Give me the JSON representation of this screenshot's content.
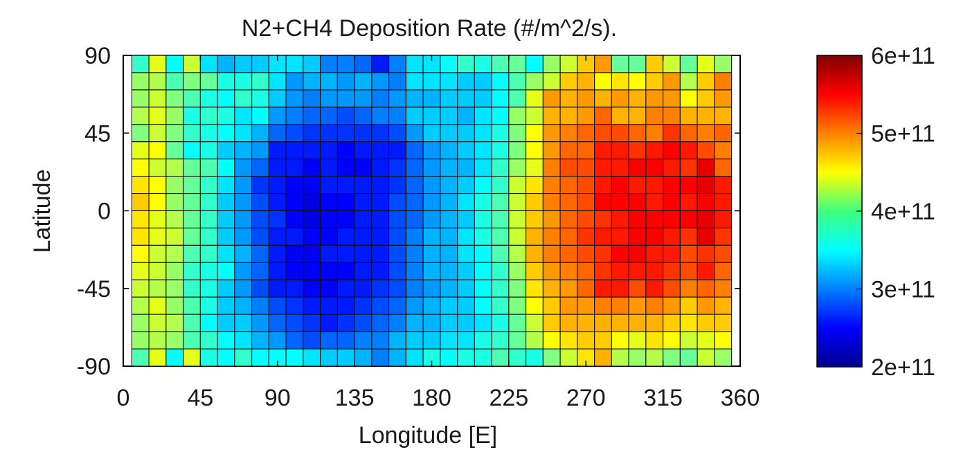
{
  "chart_data": {
    "type": "heatmap",
    "title": "N2+CH4 Deposition Rate (#/m^2/s).",
    "xlabel": "Longitude [E]",
    "ylabel": "Latitude",
    "xlim": [
      0,
      360
    ],
    "ylim": [
      -90,
      90
    ],
    "x_ticks": [
      "0",
      "45",
      "90",
      "135",
      "180",
      "225",
      "270",
      "315",
      "360"
    ],
    "y_ticks": [
      "90",
      "45",
      "0",
      "-45",
      "-90"
    ],
    "cell_size_deg": 10,
    "unit_multiplier": 100000000000.0,
    "colorbar": {
      "min": 200000000000.0,
      "max": 600000000000.0,
      "ticks": [
        "6e+11",
        "5e+11",
        "4e+11",
        "3e+11",
        "2e+11"
      ],
      "colormap": "jet"
    },
    "lon_centers": [
      10,
      20,
      30,
      40,
      50,
      60,
      70,
      80,
      90,
      100,
      110,
      120,
      130,
      140,
      150,
      160,
      170,
      180,
      190,
      200,
      210,
      220,
      230,
      240,
      250,
      260,
      270,
      280,
      290,
      300,
      310,
      320,
      330,
      340,
      350
    ],
    "lat_centers_north": [
      85,
      75,
      65,
      55,
      45,
      35,
      25,
      15,
      5
    ],
    "lat_centers_south": [
      -5,
      -15,
      -25,
      -35,
      -45,
      -55,
      -65,
      -75,
      -85
    ],
    "values_north": [
      [
        3.7,
        4.4,
        3.5,
        4.3,
        3.4,
        3.2,
        3.3,
        3.3,
        3.4,
        3.4,
        3.3,
        3.0,
        3.0,
        2.9,
        2.6,
        3.0,
        3.4,
        3.4,
        3.5,
        3.7,
        3.6,
        3.8,
        3.9,
        3.5,
        4.1,
        4.3,
        4.7,
        4.9,
        3.9,
        3.9,
        4.7,
        4.3,
        3.9,
        4.4,
        4.1
      ],
      [
        4.1,
        4.2,
        3.8,
        4.0,
        3.9,
        3.6,
        3.6,
        3.7,
        3.4,
        3.1,
        3.2,
        3.2,
        3.1,
        3.2,
        3.1,
        3.0,
        3.4,
        3.4,
        3.4,
        3.3,
        3.3,
        3.5,
        3.8,
        4.1,
        4.3,
        4.7,
        4.8,
        4.5,
        4.6,
        4.5,
        4.7,
        4.9,
        4.2,
        4.7,
        5.0
      ],
      [
        4.1,
        4.3,
        4.0,
        3.8,
        3.6,
        3.5,
        3.7,
        3.6,
        3.3,
        3.1,
        3.0,
        3.1,
        3.1,
        3.1,
        3.0,
        3.1,
        3.2,
        3.2,
        3.3,
        3.3,
        3.3,
        3.5,
        3.8,
        4.4,
        4.9,
        4.8,
        4.9,
        4.8,
        4.9,
        4.8,
        4.9,
        4.9,
        4.5,
        4.7,
        4.9
      ],
      [
        4.2,
        4.4,
        4.1,
        3.6,
        3.7,
        3.6,
        3.4,
        3.5,
        3.1,
        3.0,
        2.9,
        2.9,
        2.8,
        2.9,
        3.0,
        3.0,
        3.3,
        3.3,
        3.3,
        3.2,
        3.4,
        3.5,
        4.1,
        4.3,
        4.8,
        4.8,
        4.9,
        5.1,
        4.8,
        4.8,
        5.0,
        5.0,
        4.8,
        4.8,
        4.8
      ],
      [
        4.0,
        4.3,
        4.0,
        3.7,
        3.6,
        3.5,
        3.4,
        3.2,
        2.9,
        2.8,
        2.7,
        2.7,
        2.7,
        2.7,
        2.7,
        2.8,
        3.1,
        3.3,
        3.3,
        3.3,
        3.4,
        3.6,
        4.0,
        4.5,
        4.9,
        5.0,
        5.1,
        5.2,
        5.2,
        5.1,
        5.0,
        5.3,
        5.1,
        5.0,
        5.1
      ],
      [
        4.4,
        4.5,
        3.9,
        3.5,
        3.6,
        3.3,
        3.2,
        3.1,
        2.6,
        2.6,
        2.6,
        2.6,
        2.5,
        2.6,
        2.6,
        2.6,
        2.9,
        3.1,
        3.2,
        3.3,
        3.4,
        3.6,
        4.0,
        4.5,
        4.9,
        5.1,
        5.1,
        5.4,
        5.4,
        5.3,
        5.4,
        5.5,
        5.4,
        5.2,
        5.0
      ],
      [
        4.5,
        4.3,
        4.2,
        3.9,
        3.8,
        3.5,
        3.1,
        2.9,
        2.6,
        2.6,
        2.5,
        2.6,
        2.5,
        2.5,
        2.6,
        2.7,
        2.9,
        3.1,
        3.2,
        3.2,
        3.4,
        3.7,
        4.1,
        4.4,
        5.0,
        5.2,
        5.2,
        5.4,
        5.4,
        5.5,
        5.5,
        5.4,
        5.3,
        5.6,
        5.1
      ],
      [
        4.6,
        4.5,
        4.1,
        3.9,
        3.7,
        3.4,
        3.1,
        2.7,
        2.6,
        2.5,
        2.5,
        2.6,
        2.6,
        2.6,
        2.6,
        2.7,
        2.9,
        3.1,
        3.2,
        3.3,
        3.5,
        3.7,
        4.3,
        4.6,
        5.0,
        5.1,
        5.2,
        5.4,
        5.5,
        5.4,
        5.4,
        5.5,
        5.5,
        5.6,
        5.4
      ],
      [
        4.7,
        4.5,
        4.1,
        3.9,
        3.7,
        3.3,
        3.1,
        2.8,
        2.6,
        2.5,
        2.4,
        2.5,
        2.5,
        2.6,
        2.6,
        2.8,
        2.9,
        3.1,
        3.2,
        3.4,
        3.6,
        3.8,
        4.3,
        4.7,
        5.0,
        5.1,
        5.2,
        5.5,
        5.5,
        5.5,
        5.4,
        5.5,
        5.4,
        5.5,
        5.4
      ]
    ],
    "values_south": [
      [
        4.6,
        4.4,
        4.2,
        3.9,
        3.7,
        3.3,
        3.1,
        2.8,
        2.7,
        2.5,
        2.4,
        2.5,
        2.5,
        2.6,
        2.6,
        2.8,
        2.9,
        3.1,
        3.2,
        3.3,
        3.6,
        3.8,
        4.3,
        4.7,
        4.9,
        5.1,
        5.2,
        5.3,
        5.4,
        5.5,
        5.5,
        5.5,
        5.5,
        5.6,
        5.4
      ],
      [
        4.6,
        4.4,
        4.3,
        3.9,
        3.7,
        3.3,
        3.1,
        2.8,
        2.6,
        2.6,
        2.5,
        2.5,
        2.6,
        2.6,
        2.6,
        2.8,
        3.0,
        3.2,
        3.2,
        3.4,
        3.6,
        3.8,
        4.3,
        4.8,
        5.0,
        5.1,
        5.3,
        5.4,
        5.4,
        5.5,
        5.5,
        5.4,
        5.3,
        5.6,
        5.3
      ],
      [
        4.5,
        4.3,
        4.2,
        3.8,
        3.7,
        3.4,
        3.2,
        2.9,
        2.6,
        2.5,
        2.5,
        2.6,
        2.6,
        2.6,
        2.6,
        2.8,
        3.0,
        3.2,
        3.2,
        3.4,
        3.5,
        3.8,
        4.2,
        4.8,
        5.0,
        5.1,
        5.2,
        5.3,
        5.5,
        5.5,
        5.4,
        5.4,
        5.2,
        5.3,
        5.2
      ],
      [
        4.4,
        4.3,
        4.1,
        3.7,
        3.6,
        3.5,
        3.1,
        2.9,
        2.6,
        2.5,
        2.5,
        2.5,
        2.5,
        2.6,
        2.6,
        2.8,
        3.0,
        3.2,
        3.2,
        3.3,
        3.5,
        3.7,
        4.1,
        4.7,
        4.9,
        5.0,
        5.1,
        5.3,
        5.4,
        5.4,
        5.4,
        5.3,
        5.2,
        5.4,
        5.1
      ],
      [
        4.3,
        4.2,
        4.1,
        3.7,
        3.6,
        3.3,
        3.1,
        2.8,
        2.6,
        2.6,
        2.5,
        2.5,
        2.6,
        2.6,
        2.7,
        2.8,
        3.0,
        3.1,
        3.2,
        3.3,
        3.5,
        3.7,
        4.0,
        4.6,
        4.8,
        4.9,
        5.1,
        5.4,
        5.4,
        5.2,
        5.4,
        5.2,
        5.0,
        5.1,
        5.0
      ],
      [
        4.2,
        4.4,
        4.1,
        3.8,
        3.6,
        3.3,
        3.2,
        3.0,
        2.8,
        2.7,
        2.6,
        2.6,
        2.6,
        2.7,
        2.8,
        2.9,
        3.1,
        3.2,
        3.3,
        3.3,
        3.5,
        3.7,
        4.0,
        4.5,
        4.7,
        4.9,
        4.9,
        5.0,
        5.0,
        4.9,
        5.0,
        4.9,
        4.7,
        4.9,
        4.8
      ],
      [
        4.1,
        4.3,
        4.2,
        3.8,
        3.5,
        3.3,
        3.3,
        3.1,
        2.9,
        2.8,
        2.7,
        2.6,
        2.7,
        2.8,
        2.9,
        3.0,
        3.2,
        3.2,
        3.3,
        3.3,
        3.4,
        3.6,
        3.9,
        4.3,
        4.7,
        4.8,
        4.8,
        4.8,
        4.8,
        4.8,
        4.8,
        4.7,
        4.6,
        4.7,
        4.7
      ],
      [
        4.1,
        4.2,
        4.1,
        3.8,
        3.7,
        3.5,
        3.4,
        3.2,
        3.1,
        2.9,
        2.8,
        2.9,
        2.9,
        3.0,
        3.0,
        3.2,
        3.3,
        3.3,
        3.4,
        3.4,
        3.6,
        3.7,
        3.9,
        4.2,
        4.5,
        4.6,
        4.7,
        4.7,
        4.5,
        4.4,
        4.6,
        4.5,
        4.3,
        4.4,
        4.5
      ],
      [
        3.8,
        4.4,
        3.5,
        4.4,
        3.6,
        3.5,
        3.7,
        3.5,
        3.5,
        3.5,
        3.4,
        3.3,
        3.3,
        3.2,
        3.0,
        3.2,
        3.4,
        3.6,
        3.5,
        3.6,
        3.6,
        3.8,
        3.7,
        3.6,
        4.0,
        4.3,
        4.6,
        4.8,
        4.2,
        4.1,
        4.2,
        4.0,
        3.9,
        4.3,
        4.1
      ]
    ]
  }
}
